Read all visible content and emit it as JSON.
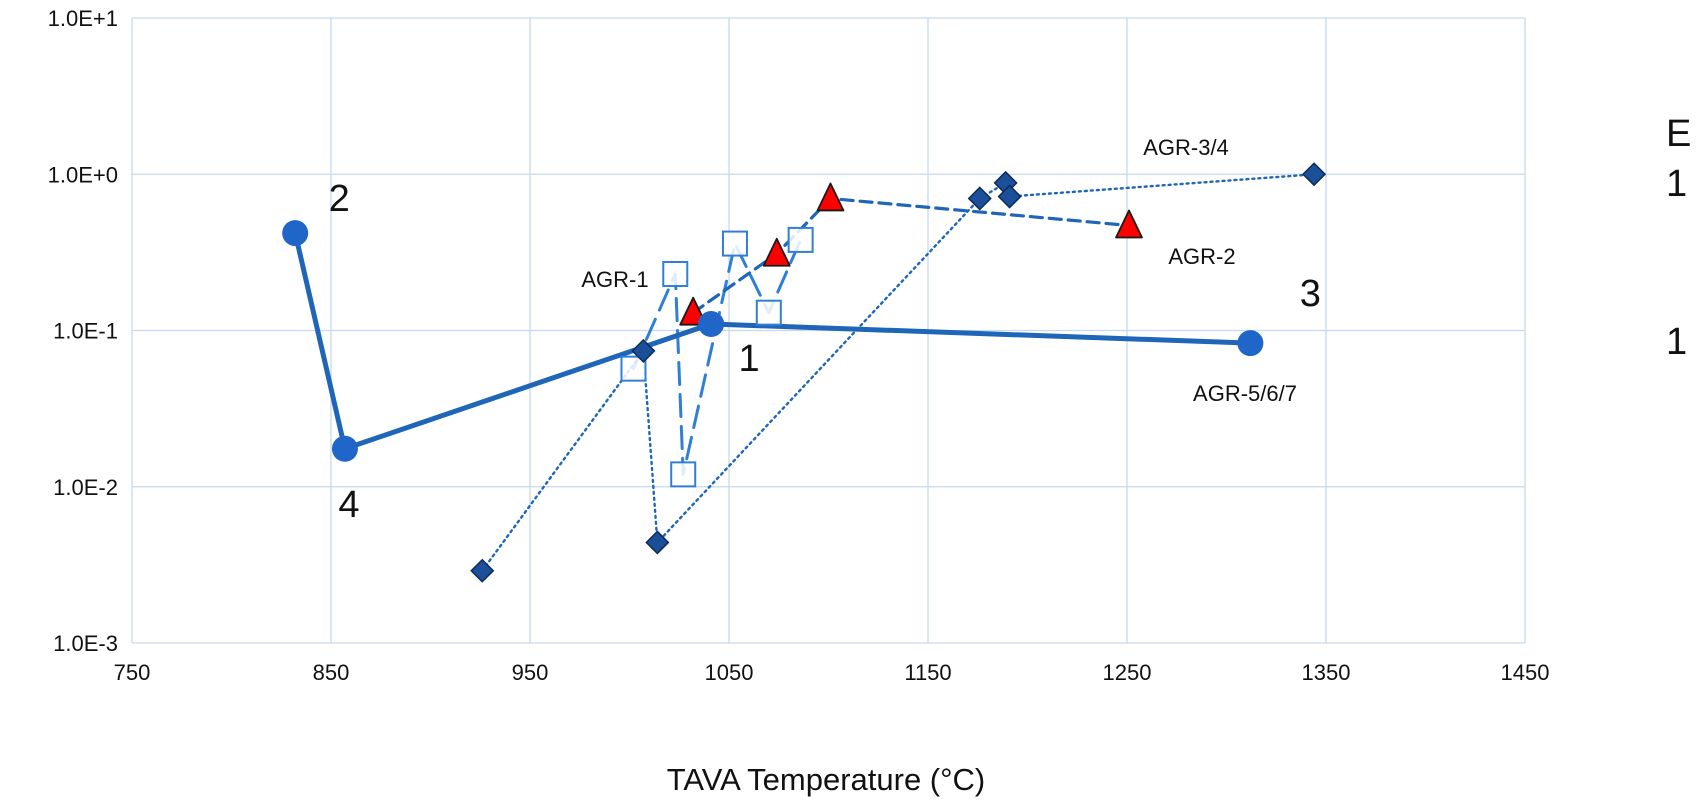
{
  "chart_data": {
    "type": "scatter",
    "title": "",
    "xlabel": "TAVA Temperature (°C)",
    "ylabel": "",
    "xlim": [
      750,
      1450
    ],
    "ylim": [
      0.001,
      10
    ],
    "yscale": "log",
    "grid": true,
    "x_ticks": [
      "750",
      "850",
      "950",
      "1050",
      "1150",
      "1250",
      "1350",
      "1450"
    ],
    "y_ticks": [
      "1.0E-3",
      "1.0E-2",
      "1.0E-1",
      "1.0E+0",
      "1.0E+1"
    ],
    "series": [
      {
        "name": "AGR-1",
        "marker": "open-square",
        "line": "long-dash",
        "color": "#2f7fd6",
        "points": [
          {
            "x": 1002,
            "y": 0.057
          },
          {
            "x": 1023,
            "y": 0.23
          },
          {
            "x": 1027,
            "y": 0.012
          },
          {
            "x": 1053,
            "y": 0.36
          },
          {
            "x": 1070,
            "y": 0.13
          },
          {
            "x": 1086,
            "y": 0.38
          }
        ]
      },
      {
        "name": "AGR-2",
        "marker": "red-triangle",
        "line": "dash",
        "color": "#1f66b8",
        "points": [
          {
            "x": 1032,
            "y": 0.13
          },
          {
            "x": 1074,
            "y": 0.31
          },
          {
            "x": 1101,
            "y": 0.7
          },
          {
            "x": 1251,
            "y": 0.47
          }
        ]
      },
      {
        "name": "AGR-3/4",
        "marker": "diamond",
        "line": "dotted",
        "color": "#1f66b8",
        "points": [
          {
            "x": 926,
            "y": 0.0029
          },
          {
            "x": 1007,
            "y": 0.074
          },
          {
            "x": 1014,
            "y": 0.0044
          },
          {
            "x": 1176,
            "y": 0.7
          },
          {
            "x": 1189,
            "y": 0.88
          },
          {
            "x": 1191,
            "y": 0.72
          },
          {
            "x": 1344,
            "y": 1.0
          }
        ]
      },
      {
        "name": "AGR-5/6/7",
        "marker": "circle",
        "line": "solid",
        "color": "#1f66b8",
        "points": [
          {
            "x": 832,
            "y": 0.42,
            "label": "2"
          },
          {
            "x": 857,
            "y": 0.0175,
            "label": "4"
          },
          {
            "x": 1041,
            "y": 0.11,
            "label": "1"
          },
          {
            "x": 1312,
            "y": 0.083,
            "label": "3"
          }
        ]
      }
    ]
  },
  "right_edge_text": [
    "E",
    "1",
    "1"
  ]
}
